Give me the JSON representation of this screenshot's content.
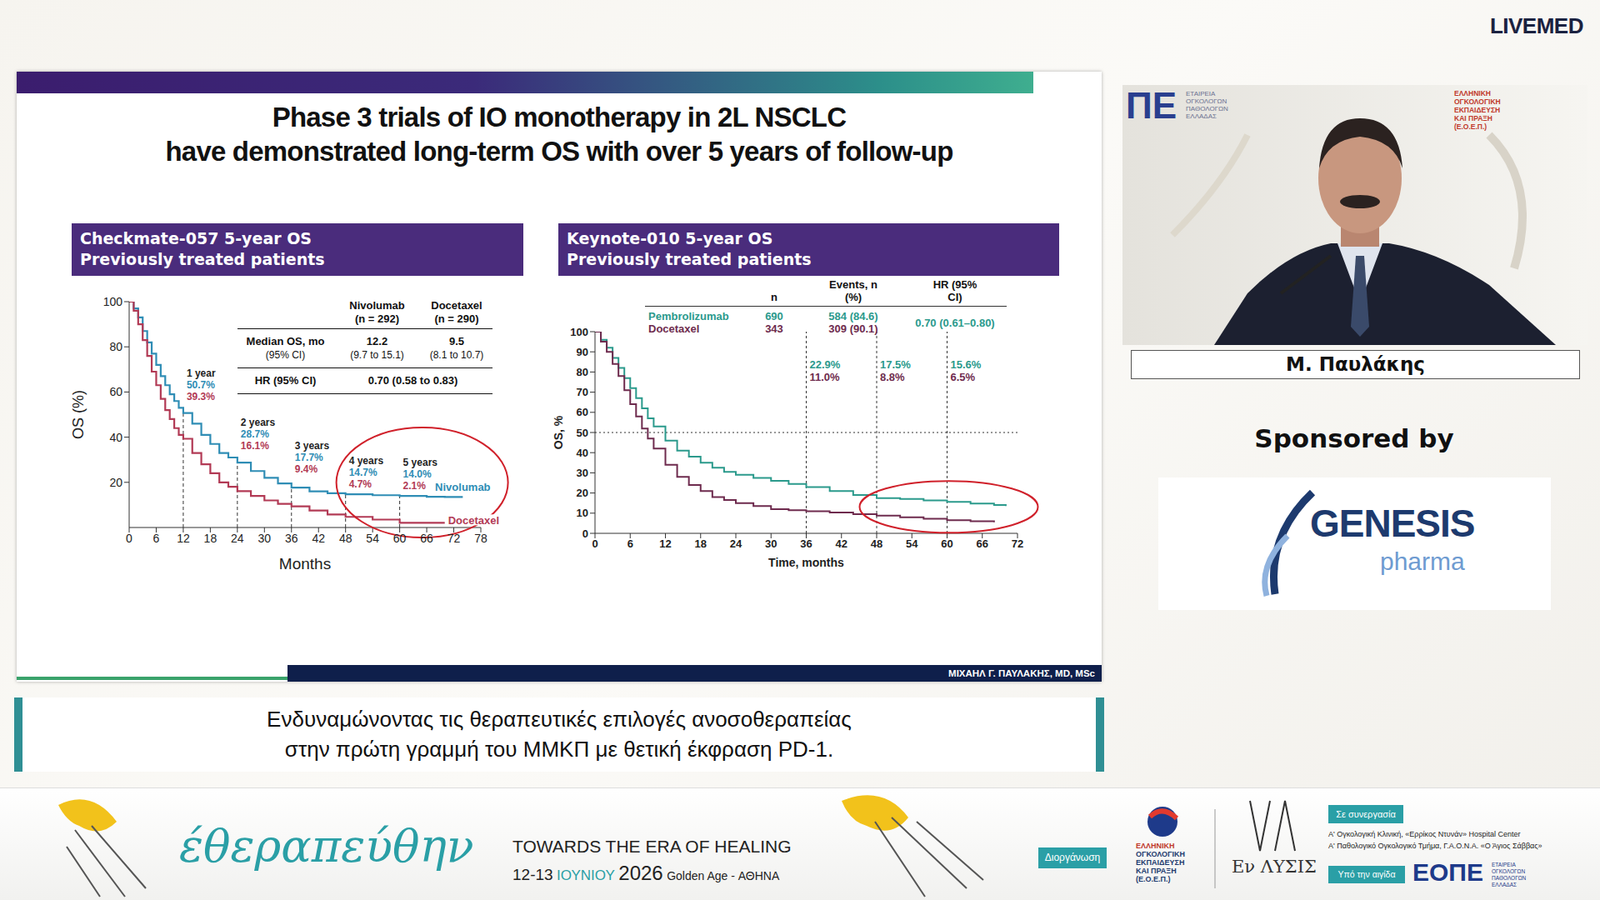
{
  "brand": "LIVEMED",
  "slide": {
    "title": [
      "Phase 3 trials of IO monotherapy in 2L NSCLC",
      "have demonstrated long-term OS with over 5 years of follow-up"
    ],
    "footer": "ΜΙΧΑΗΛ Γ. ΠΑΥΛΑΚΗΣ, MD, MSc"
  },
  "chart_data": [
    {
      "type": "line",
      "title": "Checkmate-057 5-year OS",
      "subtitle": "Previously treated patients",
      "x_label": "Months",
      "y_label": "OS (%)",
      "xlim": [
        0,
        78
      ],
      "xticks": [
        0,
        6,
        12,
        18,
        24,
        30,
        36,
        42,
        48,
        54,
        60,
        66,
        72,
        78
      ],
      "ylim": [
        0,
        100
      ],
      "yticks": [
        20,
        40,
        60,
        80,
        100
      ],
      "grid": false,
      "line_style": "step",
      "series": [
        {
          "name": "Nivolumab",
          "color": "#2f8db5",
          "x": [
            0,
            1,
            2,
            3,
            4,
            5,
            6,
            7,
            8,
            9,
            10,
            11,
            12,
            14,
            16,
            18,
            20,
            22,
            24,
            27,
            30,
            33,
            36,
            40,
            44,
            48,
            54,
            60,
            66,
            70,
            74
          ],
          "values": [
            100,
            97,
            93,
            87,
            82,
            77,
            72,
            67,
            63,
            59,
            56,
            53,
            50.7,
            46,
            41,
            37,
            33,
            31,
            28.7,
            25,
            22,
            19.5,
            17.7,
            16,
            15.2,
            14.7,
            14.3,
            14.0,
            13.6,
            13.5,
            13.5
          ]
        },
        {
          "name": "Docetaxel",
          "color": "#b23a55",
          "x": [
            0,
            1,
            2,
            3,
            4,
            5,
            6,
            7,
            8,
            9,
            10,
            11,
            12,
            14,
            16,
            18,
            20,
            22,
            24,
            27,
            30,
            33,
            36,
            40,
            44,
            48,
            54,
            60,
            66,
            70
          ],
          "values": [
            100,
            96,
            90,
            83,
            76,
            69,
            63,
            57,
            52,
            48,
            44,
            41,
            39.3,
            33,
            28,
            24,
            20,
            18,
            16.1,
            14,
            12,
            10.5,
            9.4,
            7.5,
            5.8,
            4.7,
            3.5,
            2.1,
            2.1,
            2.1
          ]
        }
      ],
      "annotations": [
        {
          "x": 12,
          "label": "1 year",
          "values": [
            50.7,
            39.3
          ],
          "value_labels": [
            "50.7%",
            "39.3%"
          ]
        },
        {
          "x": 24,
          "label": "2 years",
          "values": [
            28.7,
            16.1
          ],
          "value_labels": [
            "28.7%",
            "16.1%"
          ]
        },
        {
          "x": 36,
          "label": "3 years",
          "values": [
            17.7,
            9.4
          ],
          "value_labels": [
            "17.7%",
            "9.4%"
          ]
        },
        {
          "x": 48,
          "label": "4 years",
          "values": [
            14.7,
            4.7
          ],
          "value_labels": [
            "14.7%",
            "4.7%"
          ]
        },
        {
          "x": 60,
          "label": "5 years",
          "values": [
            14.0,
            2.1
          ],
          "value_labels": [
            "14.0%",
            "2.1%"
          ]
        }
      ],
      "table": {
        "columns": [
          {
            "name": "Nivolumab",
            "n": "(n = 292)"
          },
          {
            "name": "Docetaxel",
            "n": "(n = 290)"
          }
        ],
        "rows": [
          {
            "label": "Median OS, mo",
            "sublabel": "(95% CI)",
            "cells": [
              {
                "value": "12.2",
                "ci": "(9.7 to 15.1)"
              },
              {
                "value": "9.5",
                "ci": "(8.1 to 10.7)"
              }
            ]
          },
          {
            "label": "HR (95% CI)",
            "span": "0.70 (0.58 to 0.83)"
          }
        ]
      }
    },
    {
      "type": "line",
      "title": "Keynote-010 5-year OS",
      "subtitle": "Previously treated patients",
      "x_label": "Time, months",
      "y_label": "OS, %",
      "xlim": [
        0,
        72
      ],
      "xticks": [
        0,
        6,
        12,
        18,
        24,
        30,
        36,
        42,
        48,
        54,
        60,
        66,
        72
      ],
      "ylim": [
        0,
        100
      ],
      "yticks": [
        0,
        10,
        20,
        30,
        40,
        50,
        60,
        70,
        80,
        90,
        100
      ],
      "grid": false,
      "line_style": "step",
      "median_line": 50,
      "series": [
        {
          "name": "Pembrolizumab",
          "color": "#2b9a8c",
          "x": [
            0,
            1,
            2,
            3,
            4,
            5,
            6,
            7,
            8,
            9,
            10,
            12,
            14,
            16,
            18,
            20,
            22,
            24,
            27,
            30,
            33,
            36,
            40,
            44,
            48,
            52,
            56,
            60,
            64,
            68,
            70
          ],
          "values": [
            100,
            96,
            92,
            87,
            82,
            77,
            72,
            67,
            62,
            57,
            53,
            46,
            41,
            38,
            35,
            32.5,
            30.5,
            29,
            27.5,
            26,
            24.5,
            22.9,
            21,
            19,
            17.5,
            17,
            16.3,
            15.6,
            14.8,
            14,
            13.5
          ]
        },
        {
          "name": "Docetaxel",
          "color": "#6e2b4e",
          "x": [
            0,
            1,
            2,
            3,
            4,
            5,
            6,
            7,
            8,
            9,
            10,
            12,
            14,
            16,
            18,
            20,
            22,
            24,
            27,
            30,
            33,
            36,
            40,
            44,
            48,
            52,
            56,
            60,
            64,
            68
          ],
          "values": [
            100,
            95,
            90,
            84,
            78,
            71,
            64,
            58,
            52,
            47,
            42,
            34,
            28,
            24,
            21,
            18,
            16.5,
            15,
            13.5,
            12,
            11.5,
            11.0,
            10.3,
            9.5,
            8.8,
            8,
            7.2,
            6.5,
            6,
            5.5
          ]
        }
      ],
      "annotations": [
        {
          "x": 36,
          "values": [
            22.9,
            11.0
          ],
          "value_labels": [
            "22.9%",
            "11.0%"
          ]
        },
        {
          "x": 48,
          "values": [
            17.5,
            8.8
          ],
          "value_labels": [
            "17.5%",
            "8.8%"
          ]
        },
        {
          "x": 60,
          "values": [
            15.6,
            6.5
          ],
          "value_labels": [
            "15.6%",
            "6.5%"
          ]
        }
      ],
      "table": {
        "columns": [
          "n",
          "Events, n (%)",
          "HR (95% CI)"
        ],
        "rows": [
          {
            "n": "690",
            "events": "584 (84.6)"
          },
          {
            "n": "343",
            "events": "309 (90.1)"
          }
        ],
        "hr": "0.70 (0.61–0.80)"
      }
    }
  ],
  "caption": [
    "Ενδυναμώνοντας τις θεραπευτικές επιλογές ανοσοθεραπείας",
    "στην πρώτη γραμμή του ΜΜΚΠ με θετική έκφραση PD-1."
  ],
  "speaker": {
    "name": "Μ. Παυλάκης",
    "backdrop": {
      "logo": "ΠΕ",
      "logo_text": [
        "ΕΤΑΙΡΕΙΑ",
        "ΟΓΚΟΛΟΓΩΝ",
        "ΠΑΘΟΛΟΓΩΝ",
        "ΕΛΛΑΔΑΣ"
      ],
      "partner_text": [
        "ΕΛΛΗΝΙΚΗ",
        "ΟΓΚΟΛΟΓΙΚΗ",
        "ΕΚΠΑΙΔΕΥΣΗ",
        "ΚΑΙ ΠΡΑΞΗ",
        "(Ε.Ο.Ε.Π.)"
      ]
    }
  },
  "sponsor": {
    "label": "Sponsored by",
    "name": "GENESIS",
    "sub": "pharma"
  },
  "banner": {
    "title": "έθεραπεύθην",
    "tagline": "TOWARDS THE ERA OF HEALING",
    "dates": "12-13",
    "month": "ΙΟΥΝΙΟΥ",
    "year": "2026",
    "venue": "Golden Age - ΑΘΗΝΑ",
    "organizer_tag": "Διοργάνωση",
    "organizer": [
      "ΕΛΛΗΝΙΚΗ",
      "ΟΓΚΟΛΟΓΙΚΗ",
      "ΕΚΠΑΙΔΕΥΣΗ",
      "ΚΑΙ ΠΡΑΞΗ",
      "(Ε.Ο.Ε.Π.)"
    ],
    "partner_logo": "Εν ΛΥΣΙΣ",
    "collab_tag": "Σε συνεργασία",
    "collaborators": [
      "Α' Ογκολογική Κλινική, «Ερρίκος Ντυνάν» Hospital Center",
      "Α' Παθολογικό Ογκολογικό Τμήμα, Γ.Α.Ο.Ν.Α. «Ο Άγιος Σάββας»"
    ],
    "auspices_tag": "Υπό την αιγίδα",
    "auspices": "ΕΟΠΕ",
    "auspices_sub": [
      "ΕΤΑΙΡΕΙΑ",
      "ΟΓΚΟΛΟΓΩΝ",
      "ΠΑΘΟΛΟΓΩΝ",
      "ΕΛΛΑΔΑΣ"
    ]
  }
}
